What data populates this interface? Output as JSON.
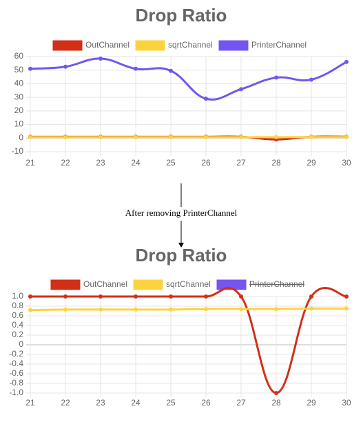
{
  "annotation": "After removing PrinterChannel",
  "chart_data": [
    {
      "type": "line",
      "title": "Drop Ratio",
      "x": [
        21,
        22,
        23,
        24,
        25,
        26,
        27,
        28,
        29,
        30
      ],
      "xlim": [
        21,
        30
      ],
      "xticks": [
        21,
        22,
        23,
        24,
        25,
        26,
        27,
        28,
        29,
        30
      ],
      "ylim": [
        -10,
        60
      ],
      "yticks": [
        -10,
        0,
        10,
        20,
        30,
        40,
        50,
        60
      ],
      "grid": true,
      "legend": "top",
      "series": [
        {
          "name": "OutChannel",
          "color": "#d32f17",
          "values": [
            1,
            1,
            1,
            1,
            1,
            1,
            1,
            -1,
            1,
            1
          ]
        },
        {
          "name": "sqrtChannel",
          "color": "#fdd33d",
          "values": [
            0.72,
            0.73,
            0.73,
            0.73,
            0.73,
            0.74,
            0.74,
            0.74,
            0.75,
            0.75
          ]
        },
        {
          "name": "PrinterChannel",
          "color": "#7455f0",
          "values": [
            51,
            52.5,
            58.5,
            51,
            49.5,
            29,
            36,
            44.5,
            43,
            56
          ]
        }
      ]
    },
    {
      "type": "line",
      "title": "Drop Ratio",
      "x": [
        21,
        22,
        23,
        24,
        25,
        26,
        27,
        28,
        29,
        30
      ],
      "xlim": [
        21,
        30
      ],
      "xticks": [
        21,
        22,
        23,
        24,
        25,
        26,
        27,
        28,
        29,
        30
      ],
      "ylim": [
        -1,
        1
      ],
      "yticks": [
        {
          "value": -1,
          "label": "-1.0"
        },
        -0.8,
        -0.6,
        -0.4,
        -0.2,
        0,
        0.2,
        0.4,
        0.6,
        0.8,
        {
          "value": 1,
          "label": "1.0"
        }
      ],
      "grid": true,
      "legend": "top",
      "series": [
        {
          "name": "OutChannel",
          "color": "#d32f17",
          "values": [
            1,
            1,
            1,
            1,
            1,
            1,
            1,
            -1,
            1,
            1
          ]
        },
        {
          "name": "sqrtChannel",
          "color": "#fdd33d",
          "values": [
            0.72,
            0.73,
            0.73,
            0.73,
            0.73,
            0.74,
            0.74,
            0.74,
            0.75,
            0.75
          ]
        },
        {
          "name": "PrinterChannel",
          "color": "#7455f0",
          "hidden": true
        }
      ]
    }
  ]
}
